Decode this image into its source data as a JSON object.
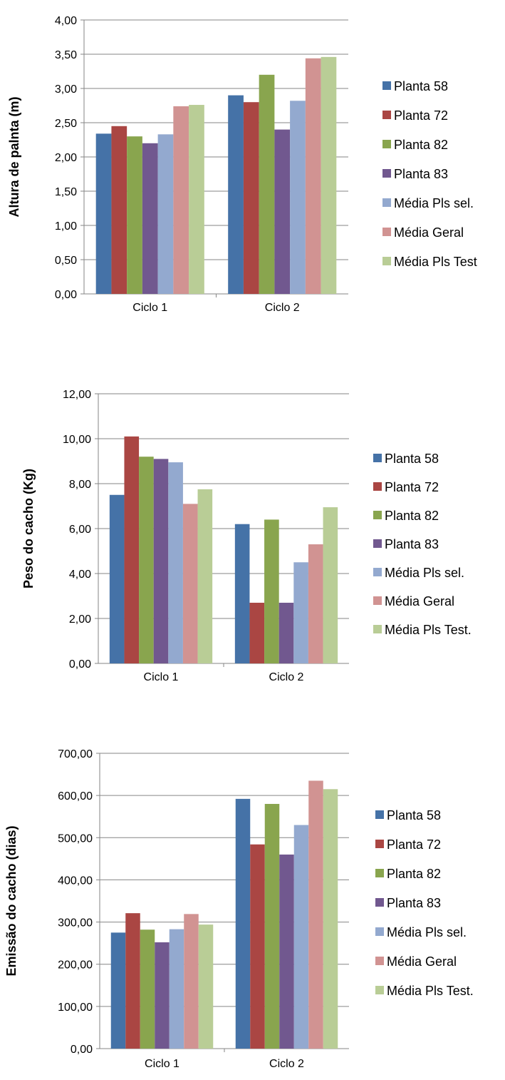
{
  "chart_data": [
    {
      "type": "bar",
      "categories": [
        "Ciclo 1",
        "Ciclo 2"
      ],
      "ylabel": "Altura de palnta (m)",
      "ylim": [
        0,
        4
      ],
      "yticks": [
        "0,00",
        "0,50",
        "1,00",
        "1,50",
        "2,00",
        "2,50",
        "3,00",
        "3,50",
        "4,00"
      ],
      "legend_position": "right",
      "grid": true,
      "series": [
        {
          "name": "Planta 58",
          "color": "#4572A7",
          "values": [
            2.34,
            2.9
          ]
        },
        {
          "name": "Planta 72",
          "color": "#AA4643",
          "values": [
            2.45,
            2.8
          ]
        },
        {
          "name": "Planta 82",
          "color": "#89A54E",
          "values": [
            2.3,
            3.2
          ]
        },
        {
          "name": "Planta 83",
          "color": "#71588F",
          "values": [
            2.2,
            2.4
          ]
        },
        {
          "name": "Média Pls sel.",
          "color": "#93A9CF",
          "values": [
            2.33,
            2.82
          ]
        },
        {
          "name": "Média Geral",
          "color": "#D19392",
          "values": [
            2.74,
            3.44
          ]
        },
        {
          "name": "Média Pls Test",
          "color": "#B9CD96",
          "values": [
            2.76,
            3.46
          ]
        }
      ]
    },
    {
      "type": "bar",
      "categories": [
        "Ciclo 1",
        "Ciclo 2"
      ],
      "ylabel": "Peso do cacho (Kg)",
      "ylim": [
        0,
        12
      ],
      "yticks": [
        "0,00",
        "2,00",
        "4,00",
        "6,00",
        "8,00",
        "10,00",
        "12,00"
      ],
      "legend_position": "right",
      "grid": true,
      "series": [
        {
          "name": "Planta 58",
          "color": "#4572A7",
          "values": [
            7.5,
            6.2
          ]
        },
        {
          "name": "Planta 72",
          "color": "#AA4643",
          "values": [
            10.1,
            2.7
          ]
        },
        {
          "name": "Planta 82",
          "color": "#89A54E",
          "values": [
            9.2,
            6.4
          ]
        },
        {
          "name": "Planta 83",
          "color": "#71588F",
          "values": [
            9.1,
            2.7
          ]
        },
        {
          "name": "Média Pls sel.",
          "color": "#93A9CF",
          "values": [
            8.95,
            4.5
          ]
        },
        {
          "name": "Média Geral",
          "color": "#D19392",
          "values": [
            7.1,
            5.3
          ]
        },
        {
          "name": "Média Pls Test.",
          "color": "#B9CD96",
          "values": [
            7.75,
            6.95
          ]
        }
      ]
    },
    {
      "type": "bar",
      "categories": [
        "Ciclo 1",
        "Ciclo 2"
      ],
      "ylabel": "Emissão do cacho (dias)",
      "ylim": [
        0,
        700
      ],
      "yticks": [
        "0,00",
        "100,00",
        "200,00",
        "300,00",
        "400,00",
        "500,00",
        "600,00",
        "700,00"
      ],
      "legend_position": "right",
      "grid": true,
      "series": [
        {
          "name": "Planta 58",
          "color": "#4572A7",
          "values": [
            275,
            592
          ]
        },
        {
          "name": "Planta 72",
          "color": "#AA4643",
          "values": [
            321,
            484
          ]
        },
        {
          "name": "Planta 82",
          "color": "#89A54E",
          "values": [
            282,
            580
          ]
        },
        {
          "name": "Planta 83",
          "color": "#71588F",
          "values": [
            252,
            460
          ]
        },
        {
          "name": "Média Pls sel.",
          "color": "#93A9CF",
          "values": [
            283,
            530
          ]
        },
        {
          "name": "Média Geral",
          "color": "#D19392",
          "values": [
            319,
            635
          ]
        },
        {
          "name": "Média Pls Test.",
          "color": "#B9CD96",
          "values": [
            294,
            615
          ]
        }
      ]
    }
  ]
}
